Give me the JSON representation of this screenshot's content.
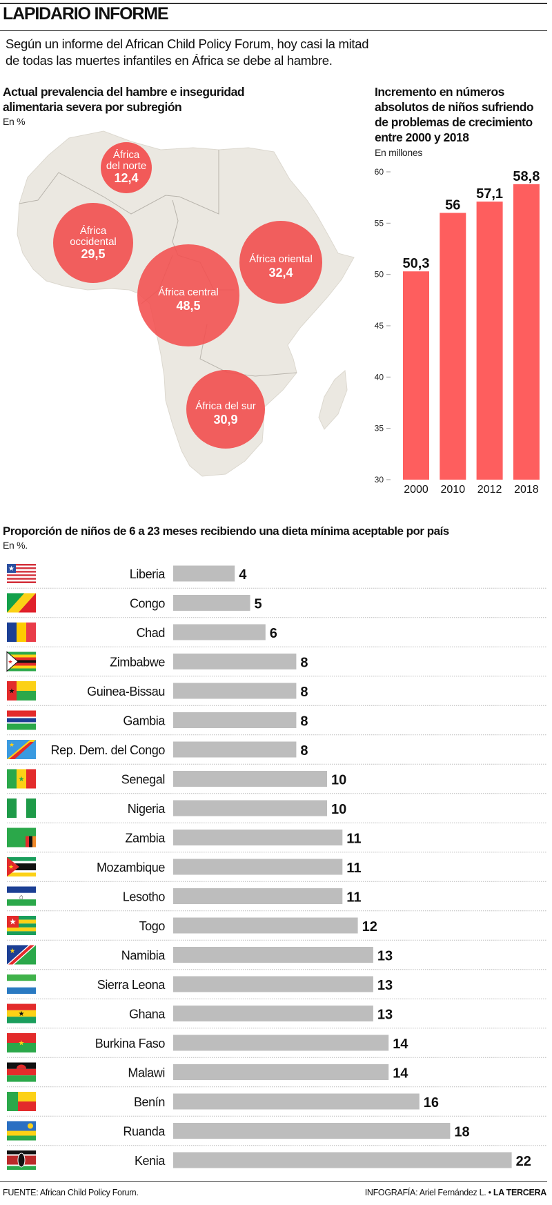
{
  "header": {
    "title": "LAPIDARIO INFORME",
    "intro_line1": "Según un informe del  African Child Policy Forum, hoy casi la mitad",
    "intro_line2": "de todas las muertes infantiles en África se debe al hambre."
  },
  "map": {
    "title_line1": "Actual prevalencia del hambre e inseguridad",
    "title_line2": "alimentaria severa por subregión",
    "unit": "En %",
    "regions": [
      {
        "name_line1": "África",
        "name_line2": "del norte",
        "value": "12,4"
      },
      {
        "name_line1": "África",
        "name_line2": "occidental",
        "value": "29,5"
      },
      {
        "name_line1": "África central",
        "name_line2": "",
        "value": "48,5"
      },
      {
        "name_line1": "África oriental",
        "name_line2": "",
        "value": "32,4"
      },
      {
        "name_line1": "África del sur",
        "name_line2": "",
        "value": "30,9"
      }
    ],
    "colors": {
      "circle": "#f24f4f",
      "land": "#ebe8e1"
    }
  },
  "chart_data": [
    {
      "type": "bar",
      "title_lines": [
        "Incremento en números",
        "absolutos de niños sufriendo",
        "de problemas de crecimiento",
        "entre 2000 y 2018"
      ],
      "ylabel": "En millones",
      "categories": [
        "2000",
        "2010",
        "2012",
        "2018"
      ],
      "values": [
        50.3,
        56,
        57.1,
        58.8
      ],
      "value_labels": [
        "50,3",
        "56",
        "57,1",
        "58,8"
      ],
      "ylim": [
        30,
        60
      ],
      "yticks": [
        "60",
        "55",
        "50",
        "45",
        "40",
        "35",
        "30"
      ],
      "color": "#fe5e5e",
      "grid": false
    },
    {
      "type": "bar",
      "orientation": "horizontal",
      "title": "Proporción de niños de 6 a 23 meses recibiendo una dieta mínima aceptable por país",
      "unit": "En %.",
      "color": "#bdbdbd",
      "rows": [
        {
          "country": "Liberia",
          "value": 4,
          "flag": "liberia-flag-icon"
        },
        {
          "country": "Congo",
          "value": 5,
          "flag": "congo-flag-icon"
        },
        {
          "country": "Chad",
          "value": 6,
          "flag": "chad-flag-icon"
        },
        {
          "country": "Zimbabwe",
          "value": 8,
          "flag": "zimbabwe-flag-icon"
        },
        {
          "country": "Guinea-Bissau",
          "value": 8,
          "flag": "guinea-bissau-flag-icon"
        },
        {
          "country": "Gambia",
          "value": 8,
          "flag": "gambia-flag-icon"
        },
        {
          "country": "Rep. Dem. del Congo",
          "value": 8,
          "flag": "dr-congo-flag-icon"
        },
        {
          "country": "Senegal",
          "value": 10,
          "flag": "senegal-flag-icon"
        },
        {
          "country": "Nigeria",
          "value": 10,
          "flag": "nigeria-flag-icon"
        },
        {
          "country": "Zambia",
          "value": 11,
          "flag": "zambia-flag-icon"
        },
        {
          "country": "Mozambique",
          "value": 11,
          "flag": "mozambique-flag-icon"
        },
        {
          "country": "Lesotho",
          "value": 11,
          "flag": "lesotho-flag-icon"
        },
        {
          "country": "Togo",
          "value": 12,
          "flag": "togo-flag-icon"
        },
        {
          "country": "Namibia",
          "value": 13,
          "flag": "namibia-flag-icon"
        },
        {
          "country": "Sierra Leona",
          "value": 13,
          "flag": "sierra-leone-flag-icon"
        },
        {
          "country": "Ghana",
          "value": 13,
          "flag": "ghana-flag-icon"
        },
        {
          "country": "Burkina Faso",
          "value": 14,
          "flag": "burkina-faso-flag-icon"
        },
        {
          "country": "Malawi",
          "value": 14,
          "flag": "malawi-flag-icon"
        },
        {
          "country": "Benín",
          "value": 16,
          "flag": "benin-flag-icon"
        },
        {
          "country": "Ruanda",
          "value": 18,
          "flag": "rwanda-flag-icon"
        },
        {
          "country": "Kenia",
          "value": 22,
          "flag": "kenya-flag-icon"
        }
      ]
    }
  ],
  "footer": {
    "source": "FUENTE: African Child Policy Forum.",
    "credit": "INFOGRAFÍA: Ariel Fernández L. • ",
    "brand": "LA TERCERA"
  }
}
